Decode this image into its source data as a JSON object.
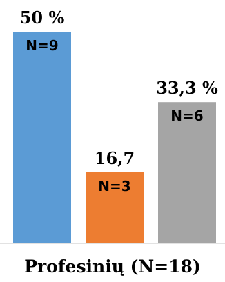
{
  "chart_data": {
    "type": "bar",
    "categories": [
      "Profesinių (N=18)"
    ],
    "xlabel": "Profesinių (N=18)",
    "ylim": [
      0,
      55
    ],
    "grid": false,
    "series": [
      {
        "value": 50,
        "value_label": "50 %",
        "n_label": "N=9",
        "color": "#5B9BD5"
      },
      {
        "value": 16.7,
        "value_label": "16,7",
        "n_label": "N=3",
        "color": "#ED7D31"
      },
      {
        "value": 33.3,
        "value_label": "33,3 %",
        "n_label": "N=6",
        "color": "#A5A5A5"
      }
    ]
  }
}
